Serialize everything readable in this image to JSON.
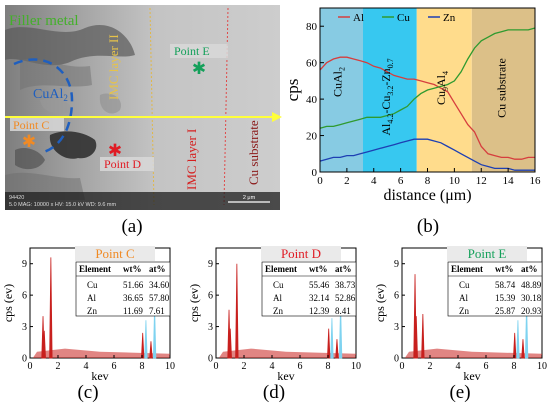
{
  "figure": {
    "panel_labels": [
      "(a)",
      "(b)",
      "(c)",
      "(d)",
      "(e)"
    ]
  },
  "micrograph": {
    "labels": {
      "filler_metal": "Filler metal",
      "cual2": "CuAl",
      "cual2_sub": "2",
      "imc_layer_2": "IMC layer II",
      "imc_layer_1": "IMC layer I",
      "cu_substrate": "Cu substrate",
      "point_c": "Point C",
      "point_d": "Point D",
      "point_e": "Point E"
    },
    "info_bar": {
      "line1": "94420",
      "line2": "5.0 MAG: 10000 x  HV: 15.0 kV  WD: 9.6 mm",
      "scale": "2 μm"
    },
    "colors": {
      "filler_label": "#43b02a",
      "cual2_label": "#1f5fbf",
      "imc2_label": "#e6c34a",
      "imc1_label": "#d61f1f",
      "cu_label": "#8b1a1a",
      "point_c": "#f08a24",
      "point_d": "#e01b24",
      "point_e": "#14a05a",
      "scan_line": "#ffff3a"
    }
  },
  "chart_data": [
    {
      "type": "line",
      "panel": "(b)",
      "xlabel": "distance (μm)",
      "ylabel": "cps",
      "xlim": [
        0,
        16
      ],
      "ylim": [
        0,
        90
      ],
      "xticks": [
        0,
        2,
        4,
        6,
        8,
        10,
        12,
        14,
        16
      ],
      "yticks": [
        0,
        20,
        40,
        60,
        80
      ],
      "legend": {
        "placement": "top",
        "entries": [
          "Al",
          "Cu",
          "Zn"
        ]
      },
      "regions": [
        {
          "label": "CuAl2",
          "from": 0,
          "to": 3.2,
          "color": "#87cbe3"
        },
        {
          "label": "Al4.2Cu3.2Zn0.7",
          "from": 3.2,
          "to": 7.2,
          "color": "#37c8f0"
        },
        {
          "label": "Cu9Al4",
          "from": 7.2,
          "to": 11.3,
          "color": "#ffdc8c"
        },
        {
          "label": "Cu substrate",
          "from": 11.3,
          "to": 16.2,
          "color": "#dcc088"
        }
      ],
      "series": [
        {
          "name": "Al",
          "color": "#d63e3e",
          "x": [
            0,
            0.5,
            1,
            1.5,
            2,
            2.5,
            3,
            3.5,
            4,
            4.5,
            5,
            5.5,
            6,
            6.5,
            7,
            7.5,
            8,
            8.5,
            9,
            9.5,
            10,
            10.5,
            11,
            11.5,
            12,
            12.5,
            13,
            13.5,
            14,
            14.5,
            15,
            15.5,
            16
          ],
          "y": [
            56,
            60,
            62,
            63,
            63,
            62,
            61,
            60,
            58,
            57,
            55,
            53,
            52,
            51,
            51,
            50,
            49,
            48,
            46,
            44,
            38,
            32,
            26,
            22,
            14,
            10,
            9,
            8,
            8,
            7,
            7,
            8,
            8
          ]
        },
        {
          "name": "Cu",
          "color": "#2f9a2f",
          "x": [
            0,
            0.5,
            1,
            1.5,
            2,
            2.5,
            3,
            3.5,
            4,
            4.5,
            5,
            5.5,
            6,
            6.5,
            7,
            7.5,
            8,
            8.5,
            9,
            9.5,
            10,
            10.5,
            11,
            11.5,
            12,
            12.5,
            13,
            13.5,
            14,
            14.5,
            15,
            15.5,
            16
          ],
          "y": [
            24,
            25,
            25,
            26,
            27,
            28,
            29,
            30,
            30,
            30,
            31,
            32,
            34,
            36,
            40,
            43,
            45,
            46,
            47,
            48,
            50,
            55,
            62,
            68,
            72,
            74,
            76,
            77,
            78,
            78,
            78,
            78,
            79
          ]
        },
        {
          "name": "Zn",
          "color": "#1d3fb3",
          "x": [
            0,
            0.5,
            1,
            1.5,
            2,
            2.5,
            3,
            3.5,
            4,
            4.5,
            5,
            5.5,
            6,
            6.5,
            7,
            7.5,
            8,
            8.5,
            9,
            9.5,
            10,
            10.5,
            11,
            11.5,
            12,
            12.5,
            13,
            13.5,
            14,
            14.5,
            15,
            15.5,
            16
          ],
          "y": [
            6,
            7,
            8,
            8,
            9,
            9,
            10,
            11,
            12,
            13,
            14,
            15,
            16,
            17,
            18,
            18,
            18,
            17,
            16,
            14,
            12,
            10,
            8,
            6,
            4,
            3,
            2,
            2,
            2,
            1,
            1,
            1,
            1
          ]
        }
      ]
    },
    {
      "type": "line",
      "panel": "(c)",
      "title": "Point C",
      "title_color": "#f08a24",
      "xlabel": "kev",
      "ylabel": "cps (ev)",
      "xlim": [
        0,
        10
      ],
      "ylim": [
        0,
        10.5
      ],
      "xticks": [
        0,
        2,
        4,
        6,
        8,
        10
      ],
      "yticks": [
        0,
        3,
        6,
        9
      ],
      "table": {
        "headers": [
          "Element",
          "wt%",
          "at%"
        ],
        "rows": [
          [
            "Cu",
            "51.66",
            "34.60"
          ],
          [
            "Al",
            "36.65",
            "57.80"
          ],
          [
            "Zn",
            "11.69",
            "7.61"
          ]
        ]
      },
      "spectrum": {
        "baseline": 0.4,
        "peaks": [
          {
            "x": 0.93,
            "y": 4.0,
            "color": "#c8201e"
          },
          {
            "x": 1.02,
            "y": 2.6,
            "color": "#c8201e"
          },
          {
            "x": 1.49,
            "y": 9.6,
            "color": "#c8201e"
          },
          {
            "x": 8.05,
            "y": 2.4,
            "color": "#c8201e"
          },
          {
            "x": 8.64,
            "y": 1.6,
            "color": "#c8201e"
          },
          {
            "x": 8.28,
            "y": 3.6,
            "color": "#7fd3f0"
          },
          {
            "x": 8.9,
            "y": 5.0,
            "color": "#7fd3f0"
          }
        ]
      }
    },
    {
      "type": "line",
      "panel": "(d)",
      "title": "Point D",
      "title_color": "#e01b24",
      "xlabel": "kev",
      "ylabel": "cps (ev)",
      "xlim": [
        0,
        10
      ],
      "ylim": [
        0,
        10.5
      ],
      "xticks": [
        0,
        2,
        4,
        6,
        8,
        10
      ],
      "yticks": [
        0,
        3,
        6,
        9
      ],
      "table": {
        "headers": [
          "Element",
          "wt%",
          "at%"
        ],
        "rows": [
          [
            "Cu",
            "55.46",
            "38.73"
          ],
          [
            "Al",
            "32.14",
            "52.86"
          ],
          [
            "Zn",
            "12.39",
            "8.41"
          ]
        ]
      },
      "spectrum": {
        "baseline": 0.4,
        "peaks": [
          {
            "x": 0.93,
            "y": 4.6,
            "color": "#c8201e"
          },
          {
            "x": 1.02,
            "y": 2.8,
            "color": "#c8201e"
          },
          {
            "x": 1.49,
            "y": 9.0,
            "color": "#c8201e"
          },
          {
            "x": 8.05,
            "y": 2.8,
            "color": "#c8201e"
          },
          {
            "x": 8.64,
            "y": 1.8,
            "color": "#c8201e"
          },
          {
            "x": 8.28,
            "y": 3.8,
            "color": "#7fd3f0"
          },
          {
            "x": 8.9,
            "y": 5.2,
            "color": "#7fd3f0"
          }
        ]
      }
    },
    {
      "type": "line",
      "panel": "(e)",
      "title": "Point E",
      "title_color": "#14a05a",
      "xlabel": "kev",
      "ylabel": "cps (ev)",
      "xlim": [
        0,
        10
      ],
      "ylim": [
        0,
        10.5
      ],
      "xticks": [
        0,
        2,
        4,
        6,
        8,
        10
      ],
      "yticks": [
        0,
        3,
        6,
        9
      ],
      "table": {
        "headers": [
          "Element",
          "wt%",
          "at%"
        ],
        "rows": [
          [
            "Cu",
            "58.74",
            "48.89"
          ],
          [
            "Al",
            "15.39",
            "30.18"
          ],
          [
            "Zn",
            "25.87",
            "20.93"
          ]
        ]
      },
      "spectrum": {
        "baseline": 0.4,
        "peaks": [
          {
            "x": 0.93,
            "y": 8.0,
            "color": "#c8201e"
          },
          {
            "x": 1.02,
            "y": 4.0,
            "color": "#c8201e"
          },
          {
            "x": 1.49,
            "y": 4.2,
            "color": "#c8201e"
          },
          {
            "x": 8.05,
            "y": 2.4,
            "color": "#c8201e"
          },
          {
            "x": 8.64,
            "y": 1.8,
            "color": "#c8201e"
          },
          {
            "x": 8.28,
            "y": 3.6,
            "color": "#7fd3f0"
          },
          {
            "x": 8.9,
            "y": 5.2,
            "color": "#7fd3f0"
          }
        ]
      }
    }
  ]
}
